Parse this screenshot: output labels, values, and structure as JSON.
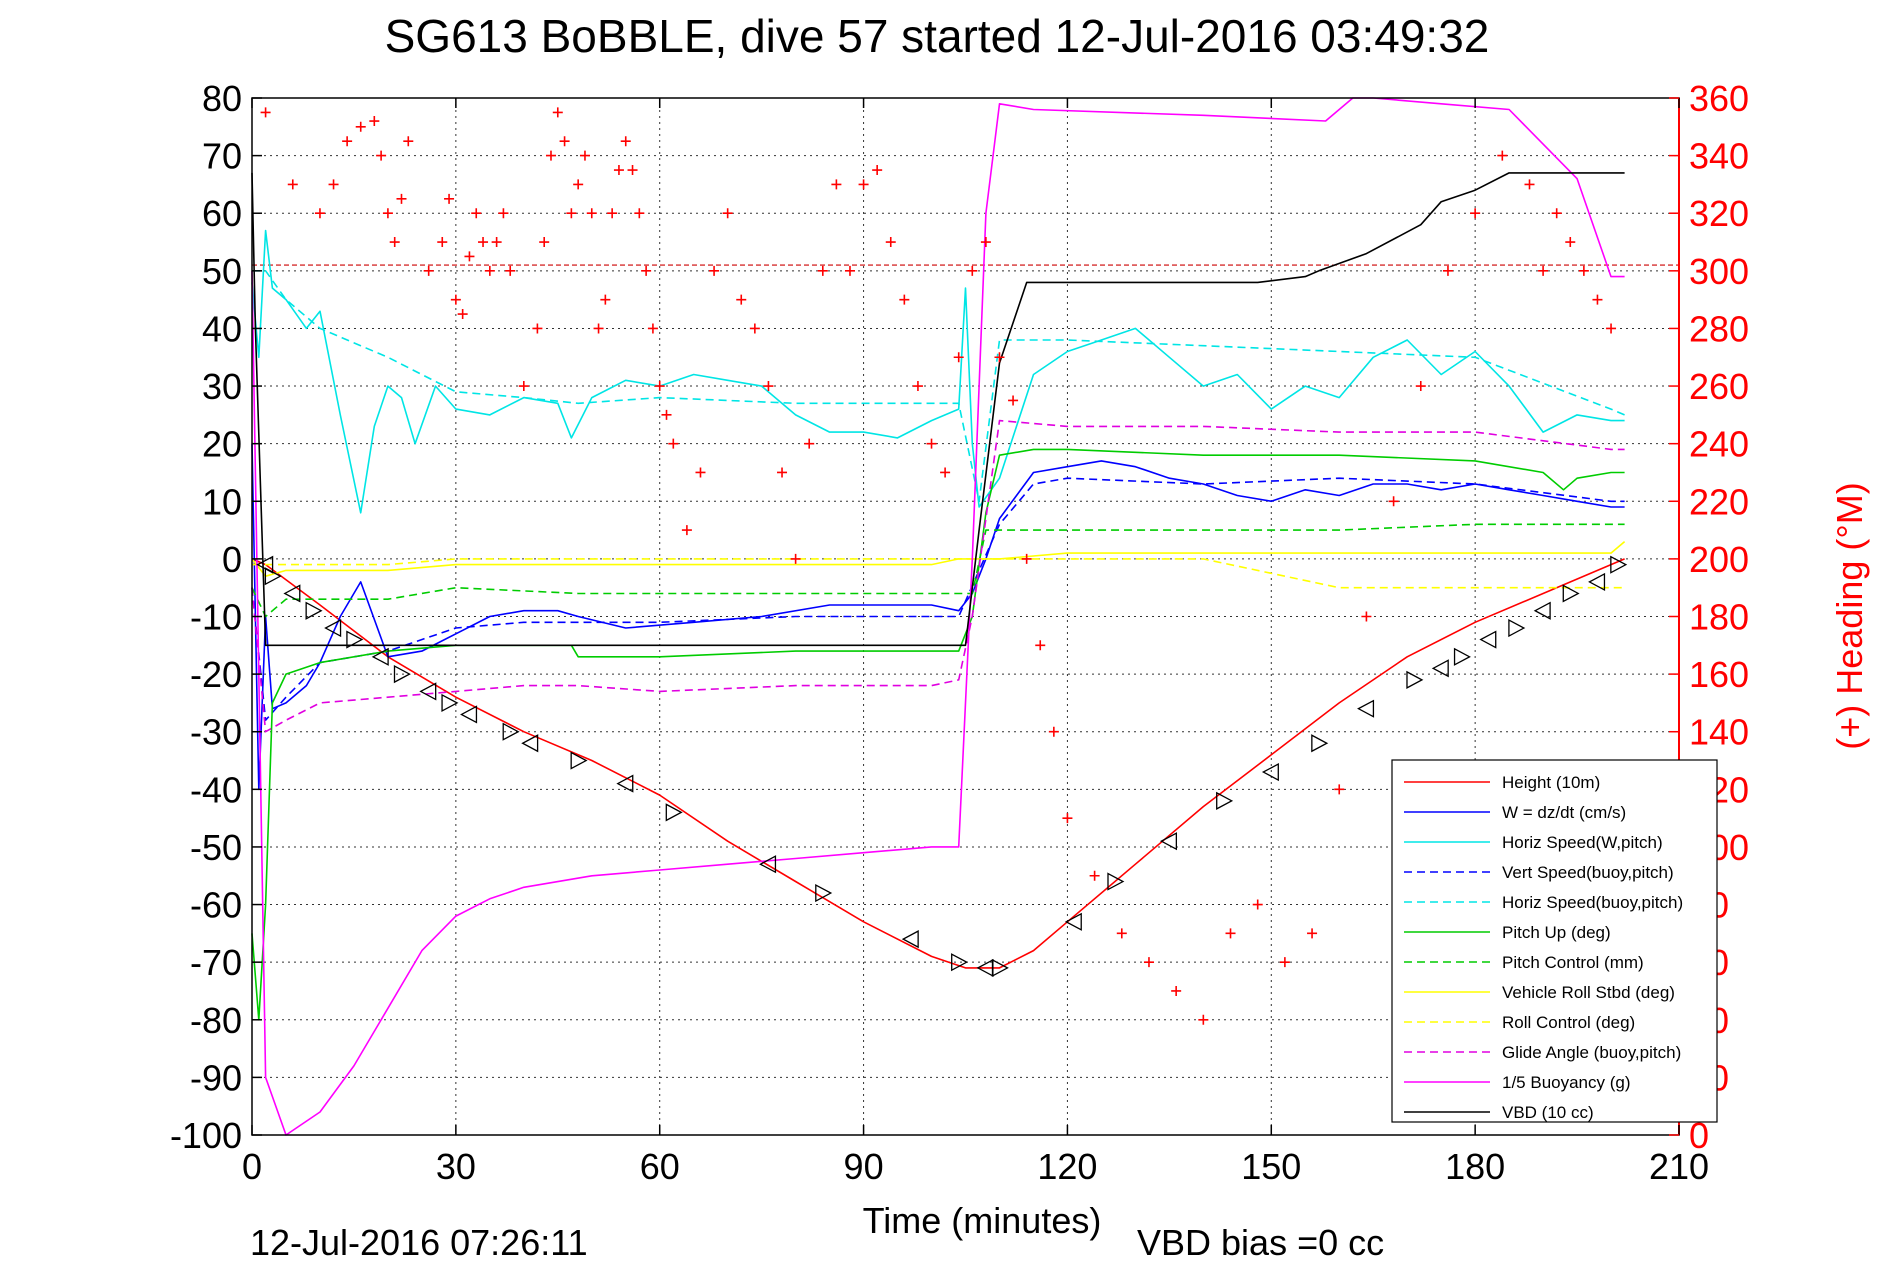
{
  "chart_data": {
    "type": "line",
    "title": "SG613 BoBBLE, dive 57 started 12-Jul-2016 03:49:32",
    "xlabel": "Time (minutes)",
    "ylabel": "",
    "y2label": "(+) Heading (°M)",
    "xlim": [
      0,
      210
    ],
    "ylim": [
      -100,
      80
    ],
    "y2lim": [
      0,
      360
    ],
    "x_ticks": [
      0,
      30,
      60,
      90,
      120,
      150,
      180,
      210
    ],
    "y_ticks": [
      80,
      70,
      60,
      50,
      40,
      30,
      20,
      10,
      0,
      -10,
      -20,
      -30,
      -40,
      -50,
      -60,
      -70,
      -80,
      -90,
      -100
    ],
    "y2_ticks": [
      360,
      340,
      320,
      300,
      280,
      260,
      240,
      220,
      200,
      180,
      160,
      140,
      120,
      100,
      80,
      60,
      40,
      20,
      0
    ],
    "grid": true,
    "legend_position": "lower-right",
    "footer_left": "12-Jul-2016 07:26:11",
    "footer_right": "VBD bias =0 cc",
    "heading_reference": 302,
    "series": [
      {
        "name": "Height (10m)",
        "color": "#ff0000",
        "style": "solid",
        "x": [
          0,
          2,
          10,
          20,
          30,
          40,
          50,
          60,
          70,
          80,
          90,
          100,
          105,
          110,
          115,
          120,
          130,
          140,
          150,
          160,
          170,
          180,
          190,
          200,
          202
        ],
        "y": [
          0,
          -1,
          -8,
          -17,
          -24,
          -30,
          -35,
          -41,
          -49,
          -56,
          -63,
          -69,
          -71,
          -71,
          -68,
          -63,
          -53,
          -43,
          -34,
          -25,
          -17,
          -11,
          -6,
          -1,
          0
        ]
      },
      {
        "name": "W = dz/dt (cm/s)",
        "color": "#0000ff",
        "style": "solid",
        "x": [
          0,
          1,
          2,
          3,
          5,
          8,
          10,
          13,
          16,
          20,
          25,
          30,
          35,
          40,
          45,
          48,
          55,
          65,
          75,
          85,
          95,
          100,
          104,
          106,
          108,
          110,
          115,
          120,
          125,
          130,
          135,
          140,
          145,
          150,
          155,
          160,
          165,
          170,
          175,
          180,
          185,
          190,
          195,
          200,
          202
        ],
        "y": [
          20,
          -40,
          -10,
          -26,
          -25,
          -22,
          -18,
          -10,
          -4,
          -17,
          -16,
          -13,
          -10,
          -9,
          -9,
          -10,
          -12,
          -11,
          -10,
          -8,
          -8,
          -8,
          -9,
          -6,
          0,
          7,
          15,
          16,
          17,
          16,
          14,
          13,
          11,
          10,
          12,
          11,
          13,
          13,
          12,
          13,
          12,
          11,
          10,
          9,
          9
        ]
      },
      {
        "name": "Horiz Speed(W,pitch)",
        "color": "#00e5e5",
        "style": "solid",
        "x": [
          0,
          1,
          2,
          3,
          5,
          8,
          10,
          13,
          16,
          18,
          20,
          22,
          24,
          27,
          30,
          35,
          40,
          45,
          47,
          50,
          55,
          60,
          65,
          70,
          75,
          80,
          85,
          90,
          95,
          100,
          104,
          105,
          106,
          107,
          110,
          115,
          120,
          125,
          130,
          135,
          140,
          145,
          150,
          155,
          160,
          165,
          170,
          175,
          180,
          185,
          190,
          195,
          200,
          202
        ],
        "y": [
          48,
          35,
          57,
          47,
          45,
          40,
          43,
          25,
          8,
          23,
          30,
          28,
          20,
          30,
          26,
          25,
          28,
          27,
          21,
          28,
          31,
          30,
          32,
          31,
          30,
          25,
          22,
          22,
          21,
          24,
          26,
          47,
          20,
          9,
          14,
          32,
          36,
          38,
          40,
          35,
          30,
          32,
          26,
          30,
          28,
          35,
          38,
          32,
          36,
          30,
          22,
          25,
          24,
          24
        ]
      },
      {
        "name": "Vert Speed(buoy,pitch)",
        "color": "#0000ff",
        "style": "dashed",
        "x": [
          0,
          2,
          5,
          10,
          20,
          30,
          40,
          48,
          60,
          80,
          100,
          104,
          107,
          110,
          115,
          120,
          140,
          160,
          180,
          200,
          202
        ],
        "y": [
          -5,
          -28,
          -24,
          -18,
          -16,
          -12,
          -11,
          -11,
          -11,
          -10,
          -10,
          -10,
          -2,
          6,
          13,
          14,
          13,
          14,
          13,
          10,
          10
        ]
      },
      {
        "name": "Horiz Speed(buoy,pitch)",
        "color": "#00e5e5",
        "style": "dashed",
        "x": [
          0,
          2,
          5,
          10,
          20,
          30,
          40,
          48,
          60,
          80,
          100,
          104,
          107,
          110,
          120,
          140,
          160,
          180,
          200,
          202
        ],
        "y": [
          50,
          50,
          45,
          40,
          35,
          29,
          28,
          27,
          28,
          27,
          27,
          27,
          10,
          38,
          38,
          37,
          36,
          35,
          26,
          25
        ]
      },
      {
        "name": "Pitch Up (deg)",
        "color": "#00cc00",
        "style": "solid",
        "x": [
          0,
          1,
          2,
          3,
          5,
          10,
          20,
          30,
          40,
          47,
          48,
          60,
          80,
          100,
          104,
          106,
          108,
          110,
          115,
          120,
          140,
          160,
          180,
          190,
          193,
          195,
          200,
          202
        ],
        "y": [
          -65,
          -80,
          -60,
          -25,
          -20,
          -18,
          -16,
          -15,
          -15,
          -15,
          -17,
          -17,
          -16,
          -16,
          -16,
          -10,
          8,
          18,
          19,
          19,
          18,
          18,
          17,
          15,
          12,
          14,
          15,
          15
        ]
      },
      {
        "name": "Pitch Control (mm)",
        "color": "#00cc00",
        "style": "dashed",
        "x": [
          0,
          2,
          5,
          10,
          20,
          30,
          48,
          60,
          80,
          100,
          104,
          106,
          108,
          110,
          140,
          160,
          180,
          200,
          202
        ],
        "y": [
          -5,
          -10,
          -7,
          -7,
          -7,
          -5,
          -6,
          -6,
          -6,
          -6,
          -6,
          -6,
          5,
          5,
          5,
          5,
          6,
          6,
          6
        ]
      },
      {
        "name": "Vehicle Roll Stbd (deg)",
        "color": "#ffff00",
        "style": "solid",
        "x": [
          0,
          2,
          5,
          10,
          20,
          30,
          40,
          48,
          60,
          80,
          100,
          104,
          106,
          110,
          120,
          140,
          160,
          180,
          200,
          202
        ],
        "y": [
          0,
          -3,
          -2,
          -2,
          -2,
          -1,
          -1,
          -1,
          -1,
          -1,
          -1,
          0,
          0,
          0,
          1,
          1,
          1,
          1,
          1,
          3
        ]
      },
      {
        "name": "Roll Control (deg)",
        "color": "#ffff00",
        "style": "dashed",
        "x": [
          0,
          5,
          10,
          20,
          30,
          48,
          60,
          80,
          104,
          108,
          110,
          140,
          160,
          170,
          200,
          202
        ],
        "y": [
          -1,
          -1,
          -1,
          -1,
          0,
          0,
          0,
          0,
          0,
          0,
          0,
          0,
          -5,
          -5,
          -5,
          -5
        ]
      },
      {
        "name": "Glide Angle (buoy,pitch)",
        "color": "#e000e0",
        "style": "dashed",
        "x": [
          0,
          2,
          5,
          10,
          20,
          30,
          40,
          48,
          60,
          80,
          100,
          104,
          106,
          110,
          120,
          140,
          160,
          180,
          200,
          202
        ],
        "y": [
          -5,
          -30,
          -28,
          -25,
          -24,
          -23,
          -22,
          -22,
          -23,
          -22,
          -22,
          -21,
          -10,
          24,
          23,
          23,
          22,
          22,
          19,
          19
        ]
      },
      {
        "name": "1/5 Buoyancy (g)",
        "color": "#ff00ff",
        "style": "solid",
        "x": [
          0,
          2,
          5,
          10,
          15,
          20,
          25,
          30,
          35,
          40,
          50,
          60,
          70,
          80,
          90,
          100,
          104,
          106,
          108,
          110,
          115,
          140,
          158,
          162,
          165,
          175,
          185,
          195,
          200,
          202
        ],
        "y": [
          50,
          -90,
          -100,
          -96,
          -88,
          -78,
          -68,
          -62,
          -59,
          -57,
          -55,
          -54,
          -53,
          -52,
          -51,
          -50,
          -50,
          0,
          60,
          79,
          78,
          77,
          76,
          80,
          80,
          79,
          78,
          66,
          49,
          49
        ]
      },
      {
        "name": "VBD (10 cc)",
        "color": "#000000",
        "style": "solid",
        "x": [
          0,
          0.5,
          2,
          10,
          20,
          40,
          60,
          80,
          100,
          105,
          107,
          110,
          114,
          130,
          140,
          148,
          155,
          157,
          164,
          172,
          175,
          180,
          185,
          202
        ],
        "y": [
          67,
          40,
          -15,
          -15,
          -15,
          -15,
          -15,
          -15,
          -15,
          -15,
          5,
          34,
          48,
          48,
          48,
          48,
          49,
          50,
          53,
          58,
          62,
          64,
          67,
          67
        ]
      }
    ],
    "heading_points": {
      "name": "(+) Heading (°M)",
      "color": "#ff0000",
      "marker": "+",
      "axis": "right",
      "x": [
        2,
        6,
        10,
        12,
        14,
        16,
        18,
        19,
        20,
        21,
        22,
        23,
        26,
        28,
        29,
        30,
        31,
        32,
        33,
        34,
        35,
        36,
        37,
        38,
        40,
        42,
        43,
        44,
        45,
        46,
        47,
        48,
        49,
        50,
        51,
        52,
        53,
        54,
        55,
        56,
        57,
        58,
        59,
        60,
        61,
        62,
        64,
        66,
        68,
        70,
        72,
        74,
        76,
        78,
        80,
        82,
        84,
        86,
        88,
        90,
        92,
        94,
        96,
        98,
        100,
        102,
        104,
        106,
        108,
        110,
        112,
        114,
        116,
        118,
        120,
        124,
        128,
        132,
        136,
        140,
        144,
        148,
        152,
        156,
        160,
        164,
        168,
        172,
        176,
        180,
        184,
        188,
        190,
        192,
        194,
        196,
        198,
        200
      ],
      "y": [
        355,
        330,
        320,
        330,
        345,
        350,
        352,
        340,
        320,
        310,
        325,
        345,
        300,
        310,
        325,
        290,
        285,
        305,
        320,
        310,
        300,
        310,
        320,
        300,
        260,
        280,
        310,
        340,
        355,
        345,
        320,
        330,
        340,
        320,
        280,
        290,
        320,
        335,
        345,
        335,
        320,
        300,
        280,
        260,
        250,
        240,
        210,
        230,
        300,
        320,
        290,
        280,
        260,
        230,
        200,
        240,
        300,
        330,
        300,
        330,
        335,
        310,
        290,
        260,
        240,
        230,
        270,
        300,
        310,
        270,
        255,
        200,
        170,
        140,
        110,
        90,
        70,
        60,
        50,
        40,
        70,
        80,
        60,
        70,
        120,
        180,
        220,
        260,
        300,
        320,
        340,
        330,
        300,
        320,
        310,
        300,
        290,
        280
      ]
    },
    "height_markers": {
      "x": [
        2,
        3,
        6,
        9,
        12,
        15,
        19,
        22,
        26,
        29,
        32,
        38,
        41,
        48,
        55,
        62,
        76,
        84,
        97,
        104,
        108,
        110,
        121,
        127,
        135,
        143,
        150,
        157,
        164,
        171,
        175,
        178,
        182,
        186,
        190,
        194,
        198,
        201
      ],
      "y": [
        -1,
        -3,
        -6,
        -9,
        -12,
        -14,
        -17,
        -20,
        -23,
        -25,
        -27,
        -30,
        -32,
        -35,
        -39,
        -44,
        -53,
        -58,
        -66,
        -70,
        -71,
        -71,
        -63,
        -56,
        -49,
        -42,
        -37,
        -32,
        -26,
        -21,
        -19,
        -17,
        -14,
        -12,
        -9,
        -6,
        -4,
        -1
      ]
    }
  }
}
